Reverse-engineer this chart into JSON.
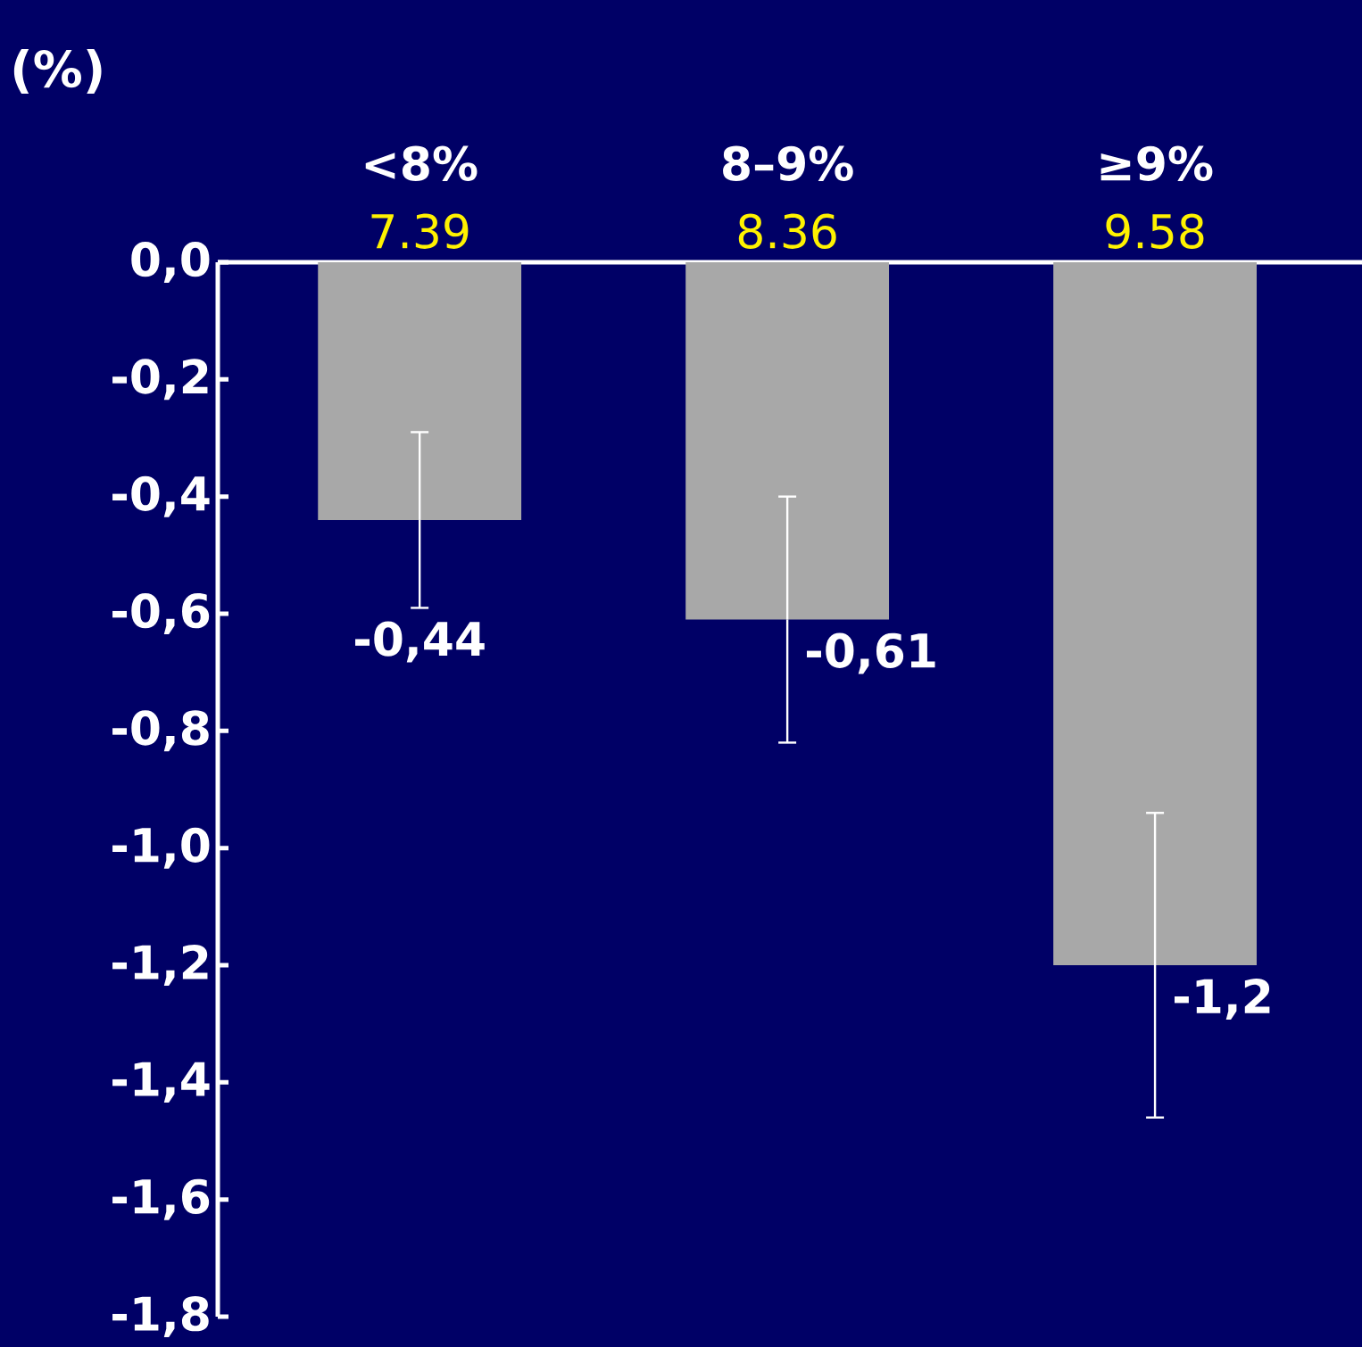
{
  "chart_data": {
    "type": "bar",
    "title": "(%)",
    "categories": [
      "<8%",
      "8–9%",
      "≥9%"
    ],
    "values": [
      -0.44,
      -0.61,
      -1.2
    ],
    "errors": [
      0.15,
      0.21,
      0.26
    ],
    "value_labels": [
      "-0,44",
      "-0,61",
      "-1,2"
    ],
    "color": "#a8a8a8",
    "annotations": [
      "7.39",
      "8.36",
      "9.58"
    ],
    "ylim": [
      -1.8,
      0
    ],
    "yticks": [
      {
        "value": 0,
        "label": "0,0"
      },
      {
        "value": -0.2,
        "label": "-0,2"
      },
      {
        "value": -0.4,
        "label": "-0,4"
      },
      {
        "value": -0.6,
        "label": "-0,6"
      },
      {
        "value": -0.8,
        "label": "-0,8"
      },
      {
        "value": -1.0,
        "label": "-1,0"
      },
      {
        "value": -1.2,
        "label": "-1,2"
      },
      {
        "value": -1.4,
        "label": "-1,4"
      },
      {
        "value": -1.6,
        "label": "-1,6"
      },
      {
        "value": -1.8,
        "label": "-1,8"
      }
    ],
    "grid": false
  }
}
